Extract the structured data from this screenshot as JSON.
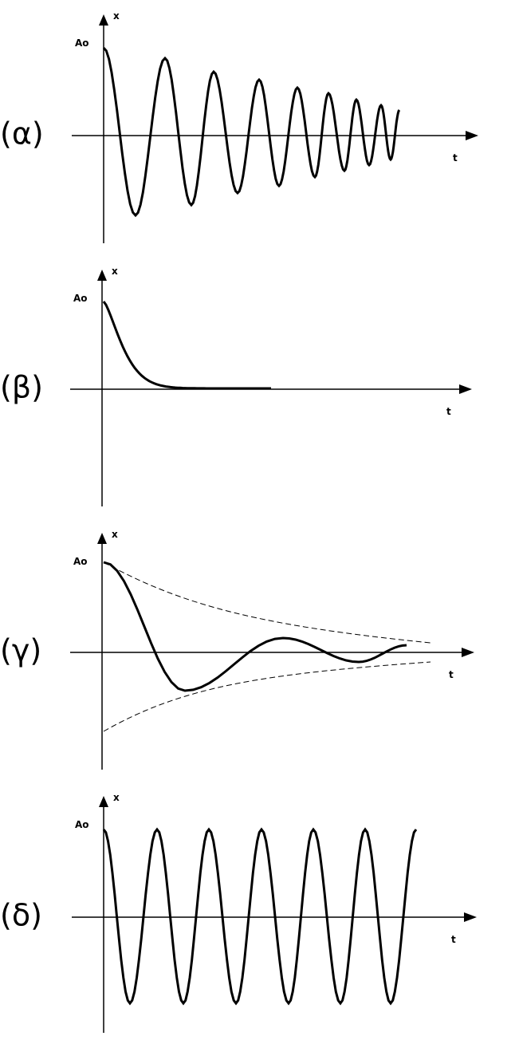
{
  "panels": [
    {
      "label": "(α)",
      "y_axis": "x",
      "amplitude": "Ao",
      "x_axis": "t"
    },
    {
      "label": "(β)",
      "y_axis": "x",
      "amplitude": "Ao",
      "x_axis": "t"
    },
    {
      "label": "(γ)",
      "y_axis": "x",
      "amplitude": "Ao",
      "x_axis": "t"
    },
    {
      "label": "(δ)",
      "y_axis": "x",
      "amplitude": "Ao",
      "x_axis": "t"
    }
  ]
}
